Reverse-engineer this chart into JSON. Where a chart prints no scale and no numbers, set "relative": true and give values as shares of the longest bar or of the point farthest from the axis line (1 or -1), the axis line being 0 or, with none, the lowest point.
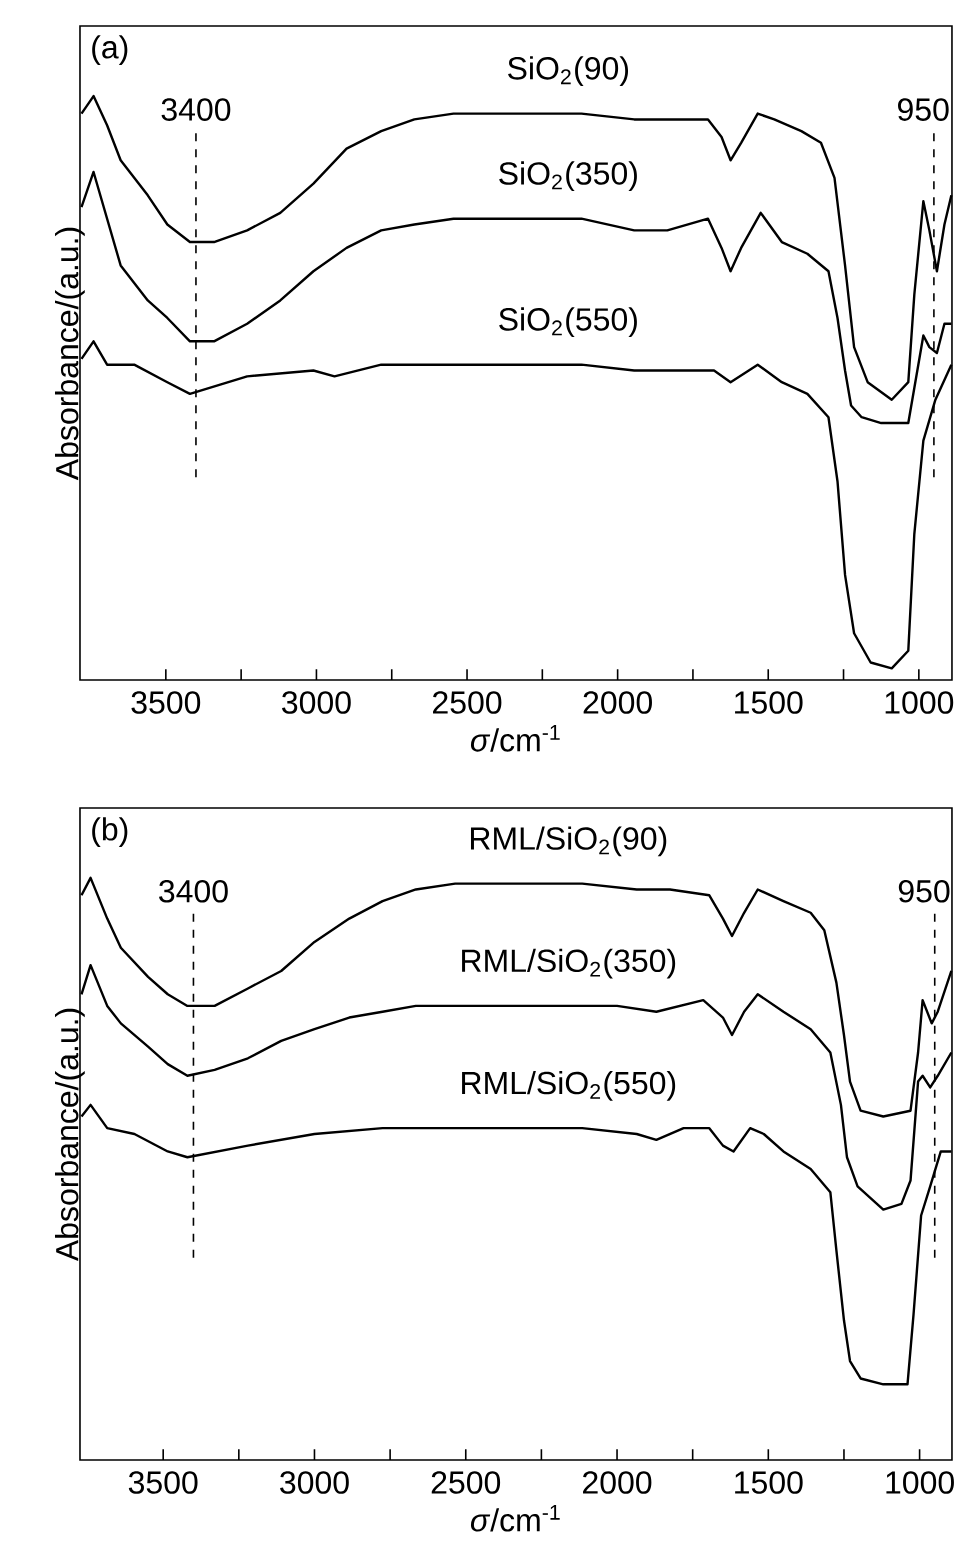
{
  "chart_data": [
    {
      "type": "line",
      "relative": true,
      "tick_labels": "x",
      "xlabel": "*σ*/cm$^{-1}$",
      "ylabel": "Absorbance/(a.u.)",
      "annotations": [
        "(a)"
      ],
      "xlim": [
        3785,
        890
      ],
      "xticks": [
        3500,
        {
          "value": 3250,
          "label": null
        },
        3000,
        {
          "value": 2750,
          "label": null
        },
        2500,
        {
          "value": 2250,
          "label": null
        },
        2000,
        {
          "value": 1750,
          "label": null
        },
        1500,
        {
          "value": 1250,
          "label": null
        },
        1000
      ],
      "ref_lines": [
        {
          "axis": "x",
          "value": 3400,
          "label": "3400",
          "line_style": "dashed"
        },
        {
          "axis": "x",
          "value": 950,
          "label": "950",
          "line_style": "dashed"
        }
      ],
      "series": [
        {
          "name": "SiO$_{2}$(90)",
          "color": "#000000",
          "x": [
            3780,
            3740,
            3695,
            3650,
            3560,
            3495,
            3420,
            3340,
            3230,
            3120,
            3010,
            2900,
            2785,
            2675,
            2545,
            2345,
            2120,
            1945,
            1835,
            1700,
            1655,
            1625,
            1590,
            1535,
            1480,
            1390,
            1325,
            1280,
            1245,
            1215,
            1170,
            1090,
            1035,
            1015,
            985,
            965,
            940,
            915,
            892
          ],
          "values": [
            0.97,
            1.0,
            0.95,
            0.89,
            0.83,
            0.78,
            0.75,
            0.75,
            0.77,
            0.8,
            0.85,
            0.91,
            0.94,
            0.96,
            0.97,
            0.97,
            0.97,
            0.96,
            0.96,
            0.96,
            0.93,
            0.89,
            0.92,
            0.97,
            0.96,
            0.94,
            0.92,
            0.86,
            0.71,
            0.57,
            0.51,
            0.48,
            0.51,
            0.66,
            0.82,
            0.77,
            0.7,
            0.78,
            0.83
          ]
        },
        {
          "name": "SiO$_{2}$(350)",
          "color": "#000000",
          "x": [
            3780,
            3740,
            3695,
            3650,
            3560,
            3495,
            3420,
            3340,
            3230,
            3120,
            3010,
            2900,
            2785,
            2675,
            2545,
            2345,
            2120,
            1945,
            1835,
            1700,
            1655,
            1625,
            1590,
            1525,
            1455,
            1370,
            1300,
            1270,
            1245,
            1225,
            1190,
            1125,
            1035,
            1015,
            985,
            965,
            940,
            915,
            892
          ],
          "values": [
            0.81,
            0.87,
            0.79,
            0.71,
            0.65,
            0.62,
            0.58,
            0.58,
            0.61,
            0.65,
            0.7,
            0.74,
            0.77,
            0.78,
            0.79,
            0.79,
            0.79,
            0.77,
            0.77,
            0.79,
            0.74,
            0.7,
            0.74,
            0.8,
            0.75,
            0.73,
            0.7,
            0.62,
            0.53,
            0.47,
            0.45,
            0.44,
            0.44,
            0.5,
            0.59,
            0.57,
            0.56,
            0.61,
            0.61
          ]
        },
        {
          "name": "SiO$_{2}$(550)",
          "color": "#000000",
          "x": [
            3780,
            3740,
            3695,
            3605,
            3495,
            3420,
            3230,
            3010,
            2940,
            2785,
            2545,
            2345,
            2120,
            1945,
            1790,
            1680,
            1625,
            1535,
            1455,
            1370,
            1300,
            1270,
            1245,
            1215,
            1160,
            1090,
            1035,
            1015,
            985,
            945,
            892
          ],
          "values": [
            0.55,
            0.58,
            0.54,
            0.54,
            0.51,
            0.49,
            0.52,
            0.53,
            0.52,
            0.54,
            0.54,
            0.54,
            0.54,
            0.53,
            0.53,
            0.53,
            0.51,
            0.54,
            0.51,
            0.49,
            0.45,
            0.34,
            0.18,
            0.08,
            0.03,
            0.02,
            0.05,
            0.25,
            0.41,
            0.48,
            0.54
          ]
        }
      ]
    },
    {
      "type": "line",
      "relative": true,
      "tick_labels": "x",
      "xlabel": "*σ*/cm$^{-1}$",
      "ylabel": "Absorbance/(a.u.)",
      "annotations": [
        "(b)"
      ],
      "xlim": [
        3775,
        893
      ],
      "xticks": [
        3500,
        {
          "value": 3250,
          "label": null
        },
        3000,
        {
          "value": 2750,
          "label": null
        },
        2500,
        {
          "value": 2250,
          "label": null
        },
        2000,
        {
          "value": 1750,
          "label": null
        },
        1500,
        {
          "value": 1250,
          "label": null
        },
        1000
      ],
      "ref_lines": [
        {
          "axis": "x",
          "value": 3400,
          "label": "3400",
          "line_style": "dashed"
        },
        {
          "axis": "x",
          "value": 950,
          "label": "950",
          "line_style": "dashed"
        }
      ],
      "series": [
        {
          "name": "RML/SiO$_{2}$(90)",
          "color": "#000000",
          "x": [
            3770,
            3740,
            3685,
            3640,
            3550,
            3485,
            3420,
            3330,
            3220,
            3110,
            3000,
            2885,
            2775,
            2665,
            2535,
            2335,
            2115,
            1935,
            1825,
            1695,
            1650,
            1620,
            1580,
            1535,
            1450,
            1360,
            1315,
            1275,
            1250,
            1230,
            1195,
            1120,
            1030,
            1005,
            990,
            960,
            940,
            895
          ],
          "values": [
            0.97,
            1.0,
            0.93,
            0.88,
            0.83,
            0.8,
            0.78,
            0.78,
            0.81,
            0.84,
            0.89,
            0.93,
            0.96,
            0.98,
            0.99,
            0.99,
            0.99,
            0.98,
            0.98,
            0.97,
            0.93,
            0.9,
            0.94,
            0.98,
            0.96,
            0.94,
            0.91,
            0.82,
            0.73,
            0.65,
            0.6,
            0.59,
            0.6,
            0.7,
            0.79,
            0.75,
            0.77,
            0.84
          ]
        },
        {
          "name": "RML/SiO$_{2}$(350)",
          "color": "#000000",
          "x": [
            3770,
            3740,
            3685,
            3640,
            3550,
            3485,
            3420,
            3330,
            3220,
            3110,
            3000,
            2885,
            2775,
            2665,
            2445,
            2225,
            2000,
            1870,
            1715,
            1650,
            1620,
            1580,
            1535,
            1450,
            1360,
            1295,
            1260,
            1240,
            1205,
            1120,
            1060,
            1030,
            1005,
            990,
            965,
            940,
            895
          ],
          "values": [
            0.8,
            0.85,
            0.78,
            0.75,
            0.71,
            0.68,
            0.66,
            0.67,
            0.69,
            0.72,
            0.74,
            0.76,
            0.77,
            0.78,
            0.78,
            0.78,
            0.78,
            0.77,
            0.79,
            0.76,
            0.73,
            0.77,
            0.8,
            0.77,
            0.74,
            0.7,
            0.61,
            0.52,
            0.47,
            0.43,
            0.44,
            0.48,
            0.65,
            0.66,
            0.64,
            0.66,
            0.7
          ]
        },
        {
          "name": "RML/SiO$_{2}$(550)",
          "color": "#000000",
          "x": [
            3770,
            3740,
            3685,
            3595,
            3485,
            3420,
            3220,
            3000,
            2775,
            2535,
            2335,
            2115,
            1935,
            1870,
            1780,
            1695,
            1650,
            1615,
            1560,
            1515,
            1450,
            1360,
            1295,
            1275,
            1250,
            1230,
            1195,
            1120,
            1040,
            1020,
            995,
            965,
            930,
            895
          ],
          "values": [
            0.59,
            0.61,
            0.57,
            0.56,
            0.53,
            0.52,
            0.54,
            0.56,
            0.57,
            0.57,
            0.57,
            0.57,
            0.56,
            0.55,
            0.57,
            0.57,
            0.54,
            0.53,
            0.57,
            0.56,
            0.53,
            0.5,
            0.46,
            0.36,
            0.24,
            0.17,
            0.14,
            0.13,
            0.13,
            0.25,
            0.42,
            0.47,
            0.53,
            0.53
          ]
        }
      ]
    }
  ]
}
